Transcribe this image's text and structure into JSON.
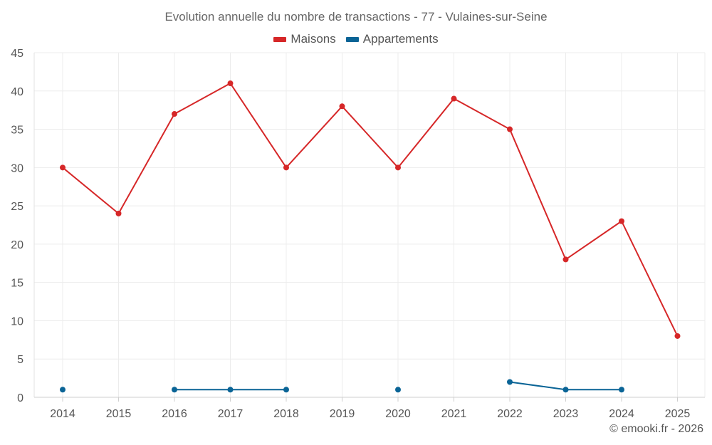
{
  "chart_data": {
    "type": "line",
    "title": "Evolution annuelle du nombre de transactions - 77 - Vulaines-sur-Seine",
    "categories": [
      "2014",
      "2015",
      "2016",
      "2017",
      "2018",
      "2019",
      "2020",
      "2021",
      "2022",
      "2023",
      "2024",
      "2025"
    ],
    "series": [
      {
        "name": "Maisons",
        "color": "#d62728",
        "values": [
          30,
          24,
          37,
          41,
          30,
          38,
          30,
          39,
          35,
          18,
          23,
          8
        ]
      },
      {
        "name": "Appartements",
        "color": "#0a6496",
        "values": [
          1,
          null,
          1,
          1,
          1,
          null,
          1,
          null,
          2,
          1,
          1,
          null
        ]
      }
    ],
    "ylim": [
      0,
      45
    ],
    "yticks": [
      0,
      5,
      10,
      15,
      20,
      25,
      30,
      35,
      40,
      45
    ],
    "xlabel": "",
    "ylabel": "",
    "grid": true,
    "legend_position": "top-center"
  },
  "credit": "© emooki.fr - 2026"
}
